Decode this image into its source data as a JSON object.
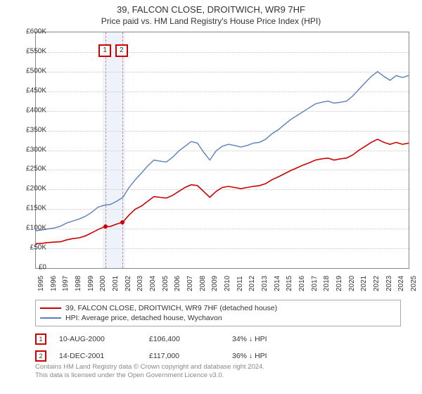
{
  "title": "39, FALCON CLOSE, DROITWICH, WR9 7HF",
  "subtitle": "Price paid vs. HM Land Registry's House Price Index (HPI)",
  "chart": {
    "type": "line",
    "x_start": 1995,
    "x_end": 2025,
    "x_step": 1,
    "ylim": [
      0,
      600000
    ],
    "ytick_step": 50000,
    "y_prefix": "£",
    "y_suffix": "K",
    "background_color": "#ffffff",
    "grid_color": "#cccccc",
    "highlight_band": {
      "from": 2000.4,
      "to": 2002.2,
      "color": "#eef2fa"
    },
    "markers": [
      {
        "id": "1",
        "x": 2000.61,
        "y": 106400
      },
      {
        "id": "2",
        "x": 2001.95,
        "y": 117000
      }
    ],
    "series": [
      {
        "name": "39, FALCON CLOSE, DROITWICH, WR9 7HF (detached house)",
        "color": "#cc0000",
        "width": 1.6,
        "points": [
          [
            1995,
            62000
          ],
          [
            1995.5,
            63000
          ],
          [
            1996,
            65000
          ],
          [
            1996.5,
            66000
          ],
          [
            1997,
            67000
          ],
          [
            1997.5,
            72000
          ],
          [
            1998,
            75000
          ],
          [
            1998.5,
            77000
          ],
          [
            1999,
            82000
          ],
          [
            1999.5,
            90000
          ],
          [
            2000,
            98000
          ],
          [
            2000.5,
            105000
          ],
          [
            2001,
            106000
          ],
          [
            2001.5,
            112000
          ],
          [
            2002,
            117000
          ],
          [
            2002.5,
            135000
          ],
          [
            2003,
            150000
          ],
          [
            2003.5,
            158000
          ],
          [
            2004,
            170000
          ],
          [
            2004.5,
            182000
          ],
          [
            2005,
            180000
          ],
          [
            2005.5,
            178000
          ],
          [
            2006,
            185000
          ],
          [
            2006.5,
            195000
          ],
          [
            2007,
            205000
          ],
          [
            2007.5,
            212000
          ],
          [
            2008,
            210000
          ],
          [
            2008.5,
            195000
          ],
          [
            2009,
            180000
          ],
          [
            2009.5,
            195000
          ],
          [
            2010,
            205000
          ],
          [
            2010.5,
            208000
          ],
          [
            2011,
            205000
          ],
          [
            2011.5,
            202000
          ],
          [
            2012,
            205000
          ],
          [
            2012.5,
            208000
          ],
          [
            2013,
            210000
          ],
          [
            2013.5,
            215000
          ],
          [
            2014,
            225000
          ],
          [
            2014.5,
            232000
          ],
          [
            2015,
            240000
          ],
          [
            2015.5,
            248000
          ],
          [
            2016,
            255000
          ],
          [
            2016.5,
            262000
          ],
          [
            2017,
            268000
          ],
          [
            2017.5,
            275000
          ],
          [
            2018,
            278000
          ],
          [
            2018.5,
            280000
          ],
          [
            2019,
            275000
          ],
          [
            2019.5,
            278000
          ],
          [
            2020,
            280000
          ],
          [
            2020.5,
            288000
          ],
          [
            2021,
            300000
          ],
          [
            2021.5,
            310000
          ],
          [
            2022,
            320000
          ],
          [
            2022.5,
            328000
          ],
          [
            2023,
            320000
          ],
          [
            2023.5,
            315000
          ],
          [
            2024,
            320000
          ],
          [
            2024.5,
            315000
          ],
          [
            2025,
            318000
          ]
        ]
      },
      {
        "name": "HPI: Average price, detached house, Wychavon",
        "color": "#5b7fb8",
        "width": 1.4,
        "points": [
          [
            1995,
            95000
          ],
          [
            1995.5,
            97000
          ],
          [
            1996,
            100000
          ],
          [
            1996.5,
            102000
          ],
          [
            1997,
            107000
          ],
          [
            1997.5,
            115000
          ],
          [
            1998,
            120000
          ],
          [
            1998.5,
            125000
          ],
          [
            1999,
            132000
          ],
          [
            1999.5,
            142000
          ],
          [
            2000,
            155000
          ],
          [
            2000.5,
            160000
          ],
          [
            2001,
            162000
          ],
          [
            2001.5,
            170000
          ],
          [
            2002,
            180000
          ],
          [
            2002.5,
            205000
          ],
          [
            2003,
            225000
          ],
          [
            2003.5,
            242000
          ],
          [
            2004,
            260000
          ],
          [
            2004.5,
            275000
          ],
          [
            2005,
            272000
          ],
          [
            2005.5,
            270000
          ],
          [
            2006,
            282000
          ],
          [
            2006.5,
            298000
          ],
          [
            2007,
            310000
          ],
          [
            2007.5,
            322000
          ],
          [
            2008,
            318000
          ],
          [
            2008.5,
            295000
          ],
          [
            2009,
            275000
          ],
          [
            2009.5,
            298000
          ],
          [
            2010,
            310000
          ],
          [
            2010.5,
            315000
          ],
          [
            2011,
            312000
          ],
          [
            2011.5,
            308000
          ],
          [
            2012,
            312000
          ],
          [
            2012.5,
            318000
          ],
          [
            2013,
            320000
          ],
          [
            2013.5,
            328000
          ],
          [
            2014,
            342000
          ],
          [
            2014.5,
            352000
          ],
          [
            2015,
            365000
          ],
          [
            2015.5,
            378000
          ],
          [
            2016,
            388000
          ],
          [
            2016.5,
            398000
          ],
          [
            2017,
            408000
          ],
          [
            2017.5,
            418000
          ],
          [
            2018,
            422000
          ],
          [
            2018.5,
            425000
          ],
          [
            2019,
            420000
          ],
          [
            2019.5,
            422000
          ],
          [
            2020,
            425000
          ],
          [
            2020.5,
            438000
          ],
          [
            2021,
            455000
          ],
          [
            2021.5,
            472000
          ],
          [
            2022,
            488000
          ],
          [
            2022.5,
            500000
          ],
          [
            2023,
            488000
          ],
          [
            2023.5,
            478000
          ],
          [
            2024,
            490000
          ],
          [
            2024.5,
            485000
          ],
          [
            2025,
            490000
          ]
        ]
      }
    ]
  },
  "legend": {
    "border_color": "#aaaaaa",
    "items": [
      {
        "label": "39, FALCON CLOSE, DROITWICH, WR9 7HF (detached house)",
        "color": "#cc0000"
      },
      {
        "label": "HPI: Average price, detached house, Wychavon",
        "color": "#5b7fb8"
      }
    ]
  },
  "events": [
    {
      "id": "1",
      "date": "10-AUG-2000",
      "price": "£106,400",
      "delta": "34% ↓ HPI"
    },
    {
      "id": "2",
      "date": "14-DEC-2001",
      "price": "£117,000",
      "delta": "36% ↓ HPI"
    }
  ],
  "footer": {
    "line1": "Contains HM Land Registry data © Crown copyright and database right 2024.",
    "line2": "This data is licensed under the Open Government Licence v3.0."
  }
}
